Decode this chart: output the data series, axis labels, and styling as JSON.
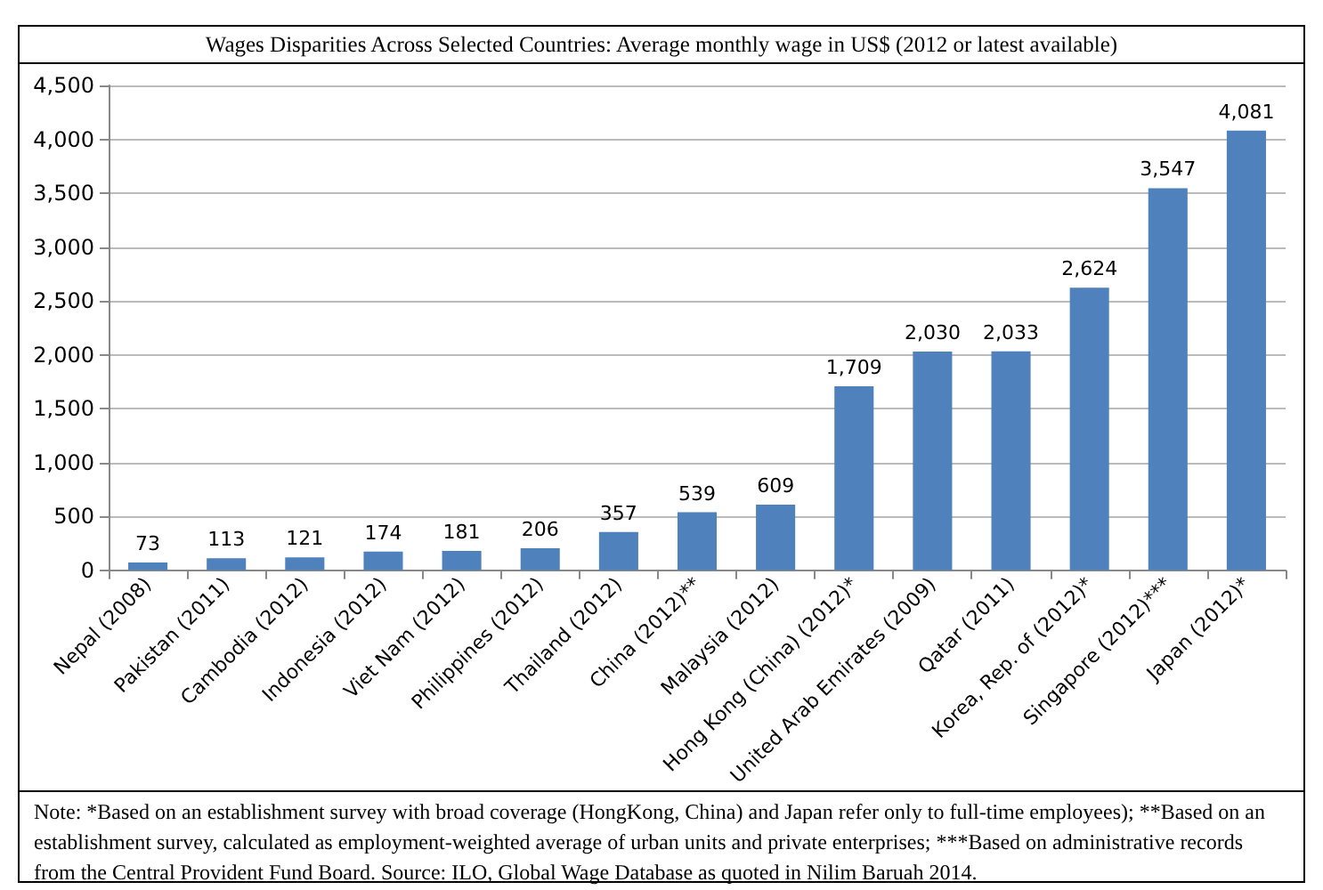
{
  "chart_data": {
    "type": "bar",
    "title": "Wages Disparities Across Selected Countries: Average monthly wage in US$ (2012 or latest available)",
    "categories": [
      "Nepal (2008)",
      "Pakistan (2011)",
      "Cambodia (2012)",
      "Indonesia (2012)",
      "Viet Nam (2012)",
      "Philippines (2012)",
      "Thailand (2012)",
      "China (2012)**",
      "Malaysia (2012)",
      "Hong Kong (China) (2012)*",
      "United Arab Emirates (2009)",
      "Qatar (2011)",
      "Korea, Rep. of (2012)*",
      "Singapore (2012)***",
      "Japan (2012)*"
    ],
    "values": [
      73,
      113,
      121,
      174,
      181,
      206,
      357,
      539,
      609,
      1709,
      2030,
      2033,
      2624,
      3547,
      4081
    ],
    "value_labels": [
      "73",
      "113",
      "121",
      "174",
      "181",
      "206",
      "357",
      "539",
      "609",
      "1,709",
      "2,030",
      "2,033",
      "2,624",
      "3,547",
      "4,081"
    ],
    "color": "#4f81bd",
    "ylim": [
      0,
      4500
    ],
    "yticks": [
      0,
      500,
      {
        "value": 1000,
        "label": "1,000"
      },
      {
        "value": 1500,
        "label": "1,500"
      },
      {
        "value": 2000,
        "label": "2,000"
      },
      {
        "value": 2500,
        "label": "2,500"
      },
      {
        "value": 3000,
        "label": "3,000"
      },
      {
        "value": 3500,
        "label": "3,500"
      },
      {
        "value": 4000,
        "label": "4,000"
      },
      {
        "value": 4500,
        "label": "4,500"
      }
    ],
    "grid": "y",
    "annotations": [
      "Note: *Based on an establishment survey with broad coverage (HongKong, China) and Japan refer only to full-time employees); **Based on an establishment survey, calculated as employment-weighted average of urban units and private enterprises; ***Based on administrative records from the Central Provident Fund Board. Source: ILO, Global Wage Database as quoted in Nilim Baruah 2014."
    ]
  }
}
